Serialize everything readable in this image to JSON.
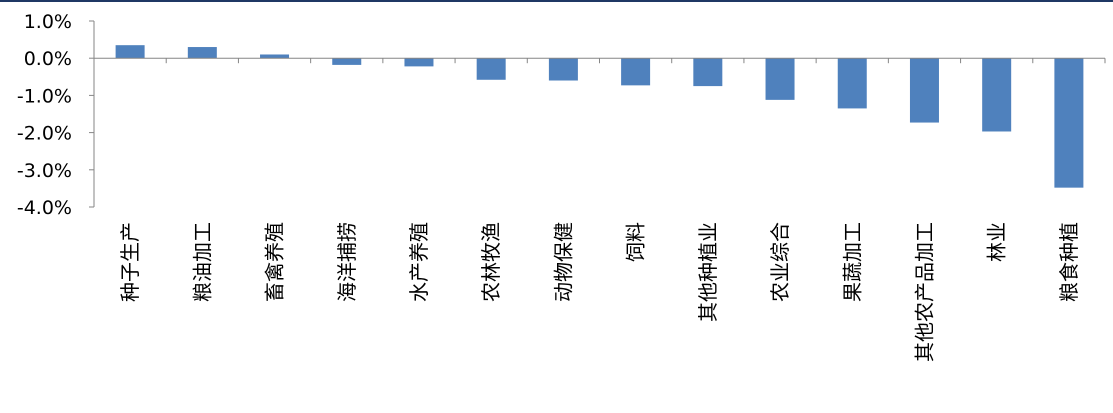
{
  "colors": {
    "bar": "#4F81BD",
    "axis": "#868686",
    "top_rule": "#1F3864",
    "text": "#000000"
  },
  "chart_data": {
    "type": "bar",
    "categories": [
      "种子生产",
      "粮油加工",
      "畜禽养殖",
      "海洋捕捞",
      "水产养殖",
      "农林牧渔",
      "动物保健",
      "饲料",
      "其他种植业",
      "农业综合",
      "果蔬加工",
      "其他农产品加工",
      "林业",
      "粮食种植"
    ],
    "values": [
      0.35,
      0.3,
      0.1,
      -0.18,
      -0.22,
      -0.58,
      -0.6,
      -0.73,
      -0.75,
      -1.12,
      -1.35,
      -1.73,
      -1.97,
      -3.48
    ],
    "ytick_labels": [
      "1.0%",
      "0.0%",
      "-1.0%",
      "-2.0%",
      "-3.0%",
      "-4.0%"
    ],
    "ytick_values": [
      1,
      0,
      -1,
      -2,
      -3,
      -4
    ],
    "ylim": [
      -4,
      1
    ],
    "title": "",
    "xlabel": "",
    "ylabel": "",
    "grid": false,
    "legend": "none"
  }
}
